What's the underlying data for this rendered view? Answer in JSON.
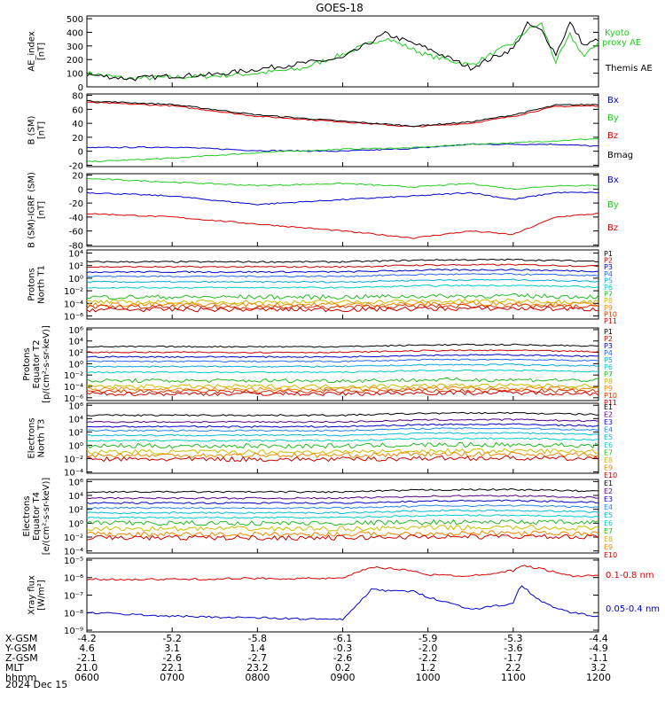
{
  "title": "GOES-18",
  "date_label": "2024 Dec 15",
  "colors": {
    "black": "#000000",
    "red": "#dd0000",
    "green": "#22cc22",
    "blue": "#0000cc",
    "P": [
      "#000000",
      "#cc0000",
      "#0000cc",
      "#2266ff",
      "#00aadd",
      "#00cccc",
      "#22bb22",
      "#ccbb00",
      "#ee8800",
      "#dd3300",
      "#cc0000"
    ],
    "E": [
      "#000000",
      "#550088",
      "#0000cc",
      "#2288ee",
      "#00bbdd",
      "#00cccc",
      "#22bb22",
      "#ccbb00",
      "#ee8800",
      "#cc0000"
    ]
  },
  "chart_data": [
    {
      "id": "ae",
      "type": "line",
      "ylabel": "AE_index\n[nT]",
      "ticks": [
        "0",
        "100",
        "200",
        "300",
        "400",
        "500"
      ],
      "yscale": "linear",
      "ylim": [
        0,
        520
      ],
      "series": [
        {
          "name": "Kyoto\nproxy AE",
          "color_key": "green"
        },
        {
          "name": "Themis AE",
          "color_key": "black"
        }
      ],
      "x": [
        "0600",
        "0630",
        "0700",
        "0730",
        "0800",
        "0830",
        "0900",
        "0930",
        "1000",
        "1030",
        "1100",
        "1110",
        "1120",
        "1130",
        "1140",
        "1150",
        "1200"
      ],
      "values": {
        "Kyoto\nproxy AE": [
          100,
          60,
          70,
          80,
          100,
          130,
          240,
          360,
          230,
          160,
          320,
          420,
          460,
          180,
          380,
          220,
          330
        ],
        "Themis AE": [
          90,
          60,
          80,
          90,
          130,
          170,
          210,
          390,
          280,
          140,
          280,
          460,
          410,
          240,
          470,
          300,
          350
        ]
      }
    },
    {
      "id": "bsm",
      "type": "line",
      "ylabel": "B (SM)\n[nT]",
      "ticks": [
        "-20",
        "0",
        "20",
        "40",
        "60",
        "80"
      ],
      "yscale": "linear",
      "ylim": [
        -22,
        82
      ],
      "series": [
        {
          "name": "Bx",
          "color_key": "blue"
        },
        {
          "name": "By",
          "color_key": "green"
        },
        {
          "name": "Bz",
          "color_key": "red"
        },
        {
          "name": "Bmag",
          "color_key": "black"
        }
      ],
      "x": [
        "0600",
        "0700",
        "0800",
        "0900",
        "0950",
        "1030",
        "1100",
        "1130",
        "1200"
      ],
      "values": {
        "Bx": [
          5,
          6,
          1,
          0,
          4,
          10,
          10,
          10,
          7
        ],
        "By": [
          -15,
          -10,
          -2,
          3,
          5,
          10,
          12,
          15,
          18
        ],
        "Bz": [
          70,
          65,
          50,
          42,
          35,
          40,
          50,
          64,
          65
        ],
        "Bmag": [
          72,
          67,
          52,
          43,
          36,
          42,
          52,
          66,
          67
        ]
      }
    },
    {
      "id": "bigrf",
      "type": "line",
      "ylabel": "B (SM)-IGRF (SM)\n[nT]",
      "ticks": [
        "-80",
        "-60",
        "-40",
        "-20",
        "0",
        "20"
      ],
      "yscale": "linear",
      "ylim": [
        -82,
        22
      ],
      "series": [
        {
          "name": "Bx",
          "color_key": "blue"
        },
        {
          "name": "By",
          "color_key": "green"
        },
        {
          "name": "Bz",
          "color_key": "red"
        }
      ],
      "x": [
        "0600",
        "0700",
        "0800",
        "0900",
        "0950",
        "1030",
        "1100",
        "1130",
        "1200"
      ],
      "values": {
        "Bx": [
          -5,
          -10,
          -22,
          -15,
          -10,
          -5,
          -15,
          -5,
          -5
        ],
        "By": [
          15,
          10,
          5,
          8,
          3,
          8,
          0,
          5,
          5
        ],
        "Bz": [
          -35,
          -40,
          -50,
          -60,
          -70,
          -60,
          -65,
          -40,
          -35
        ]
      }
    },
    {
      "id": "pn",
      "type": "line",
      "ylabel": "Protons\nNorth T1",
      "ticks": [
        "10⁻⁶",
        "10⁻⁴",
        "10⁻²",
        "10⁰",
        "10²",
        "10⁴"
      ],
      "yscale": "log",
      "ylim": [
        -6.5,
        4.5
      ],
      "series_names": [
        "P1",
        "P2",
        "P3",
        "P4",
        "P5",
        "P6",
        "P7",
        "P8",
        "P9",
        "P10",
        "P11"
      ],
      "x": [
        "0600",
        "0900",
        "1000",
        "1100",
        "1200"
      ],
      "log10_levels": [
        2.6,
        1.8,
        1.0,
        0.3,
        -0.6,
        -1.5,
        -3.0,
        -3.8,
        -4.2,
        -4.6,
        -5.0
      ]
    },
    {
      "id": "pe",
      "type": "line",
      "ylabel": "Protons\nEquator T2\n[p/(cm²-s-sr-keV)]",
      "ticks": [
        "10⁻⁶",
        "10⁻⁴",
        "10⁻²",
        "10⁰",
        "10²",
        "10⁴",
        "10⁶"
      ],
      "yscale": "log",
      "ylim": [
        -6.5,
        6.3
      ],
      "series_names": [
        "P1",
        "P2",
        "P3",
        "P4",
        "P5",
        "P6",
        "P7",
        "P8",
        "P9",
        "P10",
        "P11"
      ],
      "x": [
        "0600",
        "0900",
        "1000",
        "1100",
        "1200"
      ],
      "log10_levels": [
        3.0,
        2.0,
        1.2,
        0.4,
        -0.5,
        -1.5,
        -3.0,
        -4.0,
        -4.5,
        -4.9,
        -5.3
      ]
    },
    {
      "id": "en",
      "type": "line",
      "ylabel": "Electrons\nNorth T3",
      "ticks": [
        "10⁻⁴",
        "10⁻²",
        "10⁰",
        "10²",
        "10⁴",
        "10⁶"
      ],
      "yscale": "log",
      "ylim": [
        -4.2,
        6.3
      ],
      "series_names": [
        "E1",
        "E2",
        "E3",
        "E4",
        "E5",
        "E6",
        "E7",
        "E8",
        "E9",
        "E10"
      ],
      "x": [
        "0600",
        "0900",
        "1000",
        "1100",
        "1200"
      ],
      "log10_levels": [
        4.5,
        3.5,
        2.8,
        2.2,
        1.5,
        0.7,
        -0.1,
        -1.0,
        -1.5,
        -2.1
      ]
    },
    {
      "id": "ee",
      "type": "line",
      "ylabel": "Electrons\nEquator T4\n[e/(cm²-s-sr-keV)]",
      "ticks": [
        "10⁻⁴",
        "10⁻²",
        "10⁰",
        "10²",
        "10⁴",
        "10⁶"
      ],
      "yscale": "log",
      "ylim": [
        -4.3,
        6.3
      ],
      "series_names": [
        "E1",
        "E2",
        "E3",
        "E4",
        "E5",
        "E6",
        "E7",
        "E8",
        "E9",
        "E10"
      ],
      "x": [
        "0600",
        "0900",
        "1000",
        "1100",
        "1200"
      ],
      "log10_levels": [
        4.5,
        3.6,
        2.9,
        2.2,
        1.5,
        0.8,
        0.0,
        -0.8,
        -1.6,
        -2.1
      ]
    },
    {
      "id": "xray",
      "type": "line",
      "ylabel": "Xray flux\n[W/m²]",
      "ticks": [
        "10⁻⁹",
        "10⁻⁸",
        "10⁻⁷",
        "10⁻⁶",
        "10⁻⁵"
      ],
      "yscale": "log",
      "ylim": [
        -9.1,
        -4.9
      ],
      "series": [
        {
          "name": "0.1-0.8 nm",
          "color_key": "red"
        },
        {
          "name": "0.05-0.4 nm",
          "color_key": "blue"
        }
      ],
      "x": [
        "0600",
        "0700",
        "0800",
        "0900",
        "0920",
        "0950",
        "1000",
        "1030",
        "1100",
        "1105",
        "1120",
        "1140",
        "1200"
      ],
      "log10_values": {
        "0.1-0.8 nm": [
          -6.1,
          -6.1,
          -6.05,
          -6.05,
          -5.4,
          -5.6,
          -5.85,
          -5.9,
          -5.6,
          -5.3,
          -5.5,
          -5.9,
          -5.9
        ],
        "0.05-0.4 nm": [
          -8.0,
          -8.2,
          -8.3,
          -8.4,
          -6.7,
          -6.8,
          -7.1,
          -7.8,
          -7.5,
          -6.4,
          -7.4,
          -8.0,
          -8.2
        ]
      }
    }
  ],
  "time_axis": {
    "tick_labels": [
      "0600",
      "0700",
      "0800",
      "0900",
      "1000",
      "1100",
      "1200"
    ],
    "rows": [
      {
        "label": "X-GSM",
        "values": [
          "-4.2",
          "-5.2",
          "-5.8",
          "-6.1",
          "-5.9",
          "-5.3",
          "-4.4"
        ]
      },
      {
        "label": "Y-GSM",
        "values": [
          "4.6",
          "3.1",
          "1.4",
          "-0.3",
          "-2.0",
          "-3.6",
          "-4.9"
        ]
      },
      {
        "label": "Z-GSM",
        "values": [
          "-2.1",
          "-2.6",
          "-2.7",
          "-2.6",
          "-2.2",
          "-1.7",
          "-1.1"
        ]
      },
      {
        "label": "MLT",
        "values": [
          "21.0",
          "22.1",
          "23.2",
          "0.2",
          "1.2",
          "2.2",
          "3.2"
        ]
      },
      {
        "label": "hhmm",
        "values": [
          "0600",
          "0700",
          "0800",
          "0900",
          "1000",
          "1100",
          "1200"
        ]
      }
    ]
  }
}
